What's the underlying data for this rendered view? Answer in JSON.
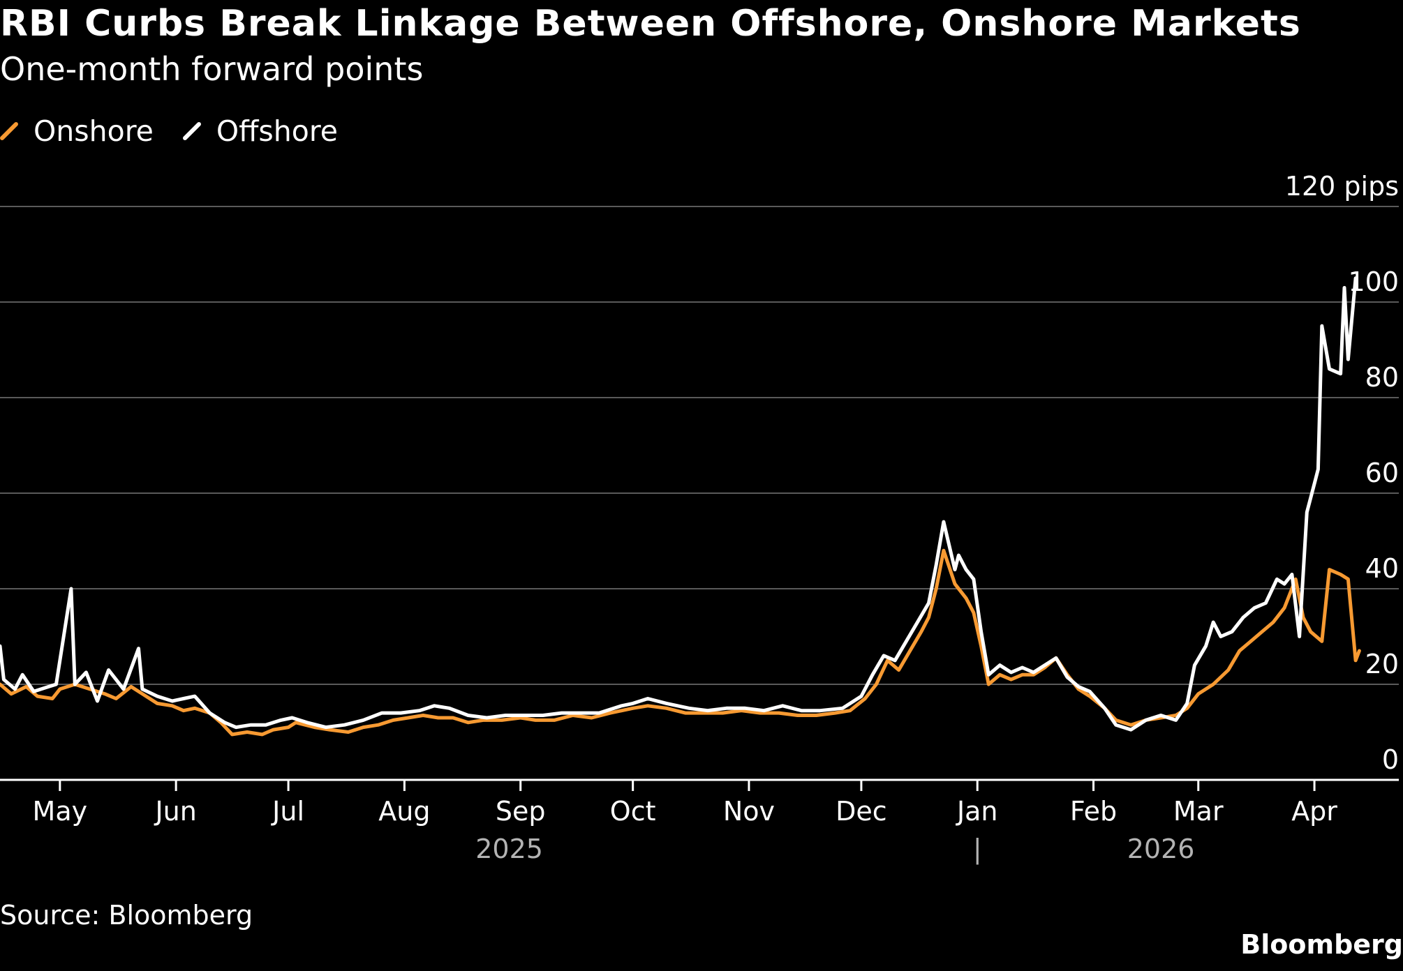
{
  "header": {
    "title": "RBI Curbs Break Linkage Between Offshore, Onshore Markets",
    "subtitle": "One-month forward points"
  },
  "legend": [
    {
      "label": "Onshore",
      "color": "#F79A32"
    },
    {
      "label": "Offshore",
      "color": "#FFFFFF"
    }
  ],
  "footer": {
    "source": "Source: Bloomberg",
    "brand": "Bloomberg"
  },
  "colors": {
    "background": "#000000",
    "gridline": "#5a5a5a",
    "axis": "#ffffff",
    "year_label": "#b3b3b3",
    "onshore": "#F79A32",
    "offshore": "#FFFFFF"
  },
  "chart_data": {
    "type": "line",
    "title": "RBI Curbs Break Linkage Between Offshore, Onshore Markets",
    "subtitle": "One-month forward points",
    "y_axis": {
      "range": [
        0,
        120
      ],
      "ticks": [
        0,
        20,
        40,
        60,
        80,
        100,
        120
      ],
      "tick_labels": [
        "0",
        "20",
        "40",
        "60",
        "80",
        "100",
        "120 pips"
      ],
      "position": "right",
      "grid": true
    },
    "x_axis": {
      "range": [
        "2025-04-15",
        "2026-04-20"
      ],
      "month_ticks": [
        {
          "date": "2025-05-01",
          "label": "May"
        },
        {
          "date": "2025-06-01",
          "label": "Jun"
        },
        {
          "date": "2025-07-01",
          "label": "Jul"
        },
        {
          "date": "2025-08-01",
          "label": "Aug"
        },
        {
          "date": "2025-09-01",
          "label": "Sep"
        },
        {
          "date": "2025-10-01",
          "label": "Oct"
        },
        {
          "date": "2025-11-01",
          "label": "Nov"
        },
        {
          "date": "2025-12-01",
          "label": "Dec"
        },
        {
          "date": "2026-01-01",
          "label": "Jan"
        },
        {
          "date": "2026-02-01",
          "label": "Feb"
        },
        {
          "date": "2026-03-01",
          "label": "Mar"
        },
        {
          "date": "2026-04-01",
          "label": "Apr"
        }
      ],
      "year_labels": [
        {
          "label": "2025",
          "date": "2025-08-29"
        },
        {
          "label": "|",
          "date": "2026-01-01"
        },
        {
          "label": "2026",
          "date": "2026-02-19"
        }
      ]
    },
    "legend_placement": "top-left",
    "series": [
      {
        "name": "Onshore",
        "color": "#F79A32",
        "points": [
          [
            "2025-04-15",
            20
          ],
          [
            "2025-04-18",
            18
          ],
          [
            "2025-04-22",
            19.5
          ],
          [
            "2025-04-25",
            17.5
          ],
          [
            "2025-04-29",
            17
          ],
          [
            "2025-05-01",
            19
          ],
          [
            "2025-05-05",
            20
          ],
          [
            "2025-05-09",
            19
          ],
          [
            "2025-05-13",
            18
          ],
          [
            "2025-05-16",
            17
          ],
          [
            "2025-05-20",
            19.5
          ],
          [
            "2025-05-23",
            18
          ],
          [
            "2025-05-27",
            16
          ],
          [
            "2025-05-31",
            15.5
          ],
          [
            "2025-06-03",
            14.5
          ],
          [
            "2025-06-06",
            15
          ],
          [
            "2025-06-10",
            14
          ],
          [
            "2025-06-13",
            12
          ],
          [
            "2025-06-16",
            9.5
          ],
          [
            "2025-06-20",
            10
          ],
          [
            "2025-06-24",
            9.5
          ],
          [
            "2025-06-27",
            10.5
          ],
          [
            "2025-07-01",
            11
          ],
          [
            "2025-07-03",
            12
          ],
          [
            "2025-07-08",
            11
          ],
          [
            "2025-07-12",
            10.5
          ],
          [
            "2025-07-17",
            10
          ],
          [
            "2025-07-21",
            11
          ],
          [
            "2025-07-25",
            11.5
          ],
          [
            "2025-07-29",
            12.5
          ],
          [
            "2025-08-02",
            13
          ],
          [
            "2025-08-06",
            13.5
          ],
          [
            "2025-08-10",
            13
          ],
          [
            "2025-08-14",
            13
          ],
          [
            "2025-08-18",
            12
          ],
          [
            "2025-08-22",
            12.5
          ],
          [
            "2025-08-27",
            12.5
          ],
          [
            "2025-09-01",
            13
          ],
          [
            "2025-09-05",
            12.5
          ],
          [
            "2025-09-10",
            12.5
          ],
          [
            "2025-09-15",
            13.5
          ],
          [
            "2025-09-20",
            13
          ],
          [
            "2025-09-25",
            14
          ],
          [
            "2025-10-01",
            15
          ],
          [
            "2025-10-05",
            15.5
          ],
          [
            "2025-10-10",
            15
          ],
          [
            "2025-10-15",
            14
          ],
          [
            "2025-10-20",
            14
          ],
          [
            "2025-10-25",
            14
          ],
          [
            "2025-10-30",
            14.5
          ],
          [
            "2025-11-04",
            14
          ],
          [
            "2025-11-09",
            14
          ],
          [
            "2025-11-14",
            13.5
          ],
          [
            "2025-11-19",
            13.5
          ],
          [
            "2025-11-24",
            14
          ],
          [
            "2025-11-28",
            14.5
          ],
          [
            "2025-12-02",
            17
          ],
          [
            "2025-12-05",
            20
          ],
          [
            "2025-12-08",
            25
          ],
          [
            "2025-12-11",
            23
          ],
          [
            "2025-12-14",
            27
          ],
          [
            "2025-12-17",
            31
          ],
          [
            "2025-12-19",
            34
          ],
          [
            "2025-12-21",
            40
          ],
          [
            "2025-12-23",
            48
          ],
          [
            "2025-12-26",
            41
          ],
          [
            "2025-12-29",
            38
          ],
          [
            "2025-12-31",
            35
          ],
          [
            "2026-01-02",
            28
          ],
          [
            "2026-01-04",
            20
          ],
          [
            "2026-01-07",
            22
          ],
          [
            "2026-01-10",
            21
          ],
          [
            "2026-01-13",
            22
          ],
          [
            "2026-01-16",
            22
          ],
          [
            "2026-01-19",
            23.5
          ],
          [
            "2026-01-22",
            25.5
          ],
          [
            "2026-01-25",
            22
          ],
          [
            "2026-01-28",
            19
          ],
          [
            "2026-01-31",
            17.5
          ],
          [
            "2026-02-04",
            15
          ],
          [
            "2026-02-07",
            12.5
          ],
          [
            "2026-02-11",
            11.5
          ],
          [
            "2026-02-15",
            12.5
          ],
          [
            "2026-02-19",
            13
          ],
          [
            "2026-02-23",
            13.5
          ],
          [
            "2026-02-26",
            15
          ],
          [
            "2026-03-01",
            18
          ],
          [
            "2026-03-05",
            20
          ],
          [
            "2026-03-09",
            23
          ],
          [
            "2026-03-12",
            27
          ],
          [
            "2026-03-15",
            29
          ],
          [
            "2026-03-18",
            31
          ],
          [
            "2026-03-21",
            33
          ],
          [
            "2026-03-24",
            36
          ],
          [
            "2026-03-27",
            42
          ],
          [
            "2026-03-29",
            34
          ],
          [
            "2026-03-31",
            31
          ],
          [
            "2026-04-03",
            29
          ],
          [
            "2026-04-05",
            44
          ],
          [
            "2026-04-08",
            43
          ],
          [
            "2026-04-10",
            42
          ],
          [
            "2026-04-12",
            25
          ],
          [
            "2026-04-13",
            27
          ]
        ]
      },
      {
        "name": "Offshore",
        "color": "#FFFFFF",
        "points": [
          [
            "2025-04-15",
            28
          ],
          [
            "2025-04-16",
            21
          ],
          [
            "2025-04-19",
            19
          ],
          [
            "2025-04-21",
            22
          ],
          [
            "2025-04-24",
            18.5
          ],
          [
            "2025-04-28",
            19.5
          ],
          [
            "2025-04-30",
            20
          ],
          [
            "2025-05-04",
            40
          ],
          [
            "2025-05-05",
            20
          ],
          [
            "2025-05-08",
            22.5
          ],
          [
            "2025-05-11",
            16.5
          ],
          [
            "2025-05-14",
            23
          ],
          [
            "2025-05-18",
            19
          ],
          [
            "2025-05-22",
            27.5
          ],
          [
            "2025-05-23",
            19
          ],
          [
            "2025-05-27",
            17.5
          ],
          [
            "2025-05-31",
            16.5
          ],
          [
            "2025-06-03",
            17
          ],
          [
            "2025-06-06",
            17.5
          ],
          [
            "2025-06-10",
            14
          ],
          [
            "2025-06-14",
            12
          ],
          [
            "2025-06-17",
            11
          ],
          [
            "2025-06-21",
            11.5
          ],
          [
            "2025-06-25",
            11.5
          ],
          [
            "2025-06-29",
            12.5
          ],
          [
            "2025-07-02",
            13
          ],
          [
            "2025-07-06",
            12
          ],
          [
            "2025-07-11",
            11
          ],
          [
            "2025-07-16",
            11.5
          ],
          [
            "2025-07-21",
            12.5
          ],
          [
            "2025-07-26",
            14
          ],
          [
            "2025-07-31",
            14
          ],
          [
            "2025-08-05",
            14.5
          ],
          [
            "2025-08-09",
            15.5
          ],
          [
            "2025-08-13",
            15
          ],
          [
            "2025-08-18",
            13.5
          ],
          [
            "2025-08-23",
            13
          ],
          [
            "2025-08-28",
            13.5
          ],
          [
            "2025-09-02",
            13.5
          ],
          [
            "2025-09-07",
            13.5
          ],
          [
            "2025-09-12",
            14
          ],
          [
            "2025-09-17",
            14
          ],
          [
            "2025-09-22",
            14
          ],
          [
            "2025-09-28",
            15.5
          ],
          [
            "2025-10-01",
            16
          ],
          [
            "2025-10-05",
            17
          ],
          [
            "2025-10-10",
            16
          ],
          [
            "2025-10-16",
            15
          ],
          [
            "2025-10-21",
            14.5
          ],
          [
            "2025-10-26",
            15
          ],
          [
            "2025-10-31",
            15
          ],
          [
            "2025-11-05",
            14.5
          ],
          [
            "2025-11-10",
            15.5
          ],
          [
            "2025-11-15",
            14.5
          ],
          [
            "2025-11-20",
            14.5
          ],
          [
            "2025-11-26",
            15
          ],
          [
            "2025-12-01",
            17.5
          ],
          [
            "2025-12-04",
            22
          ],
          [
            "2025-12-07",
            26
          ],
          [
            "2025-12-10",
            25
          ],
          [
            "2025-12-13",
            29
          ],
          [
            "2025-12-16",
            33
          ],
          [
            "2025-12-19",
            37
          ],
          [
            "2025-12-21",
            45
          ],
          [
            "2025-12-23",
            54
          ],
          [
            "2025-12-26",
            44
          ],
          [
            "2025-12-27",
            47
          ],
          [
            "2025-12-29",
            44
          ],
          [
            "2025-12-31",
            42
          ],
          [
            "2026-01-02",
            31
          ],
          [
            "2026-01-04",
            22
          ],
          [
            "2026-01-07",
            24
          ],
          [
            "2026-01-10",
            22.5
          ],
          [
            "2026-01-13",
            23.5
          ],
          [
            "2026-01-16",
            22.5
          ],
          [
            "2026-01-19",
            24
          ],
          [
            "2026-01-22",
            25.5
          ],
          [
            "2026-01-25",
            21.5
          ],
          [
            "2026-01-28",
            19.5
          ],
          [
            "2026-01-31",
            18.5
          ],
          [
            "2026-02-04",
            15
          ],
          [
            "2026-02-07",
            11.5
          ],
          [
            "2026-02-11",
            10.5
          ],
          [
            "2026-02-15",
            12.5
          ],
          [
            "2026-02-19",
            13.5
          ],
          [
            "2026-02-23",
            12.5
          ],
          [
            "2026-02-26",
            16
          ],
          [
            "2026-02-28",
            24
          ],
          [
            "2026-03-03",
            28
          ],
          [
            "2026-03-05",
            33
          ],
          [
            "2026-03-07",
            30
          ],
          [
            "2026-03-10",
            31
          ],
          [
            "2026-03-13",
            34
          ],
          [
            "2026-03-16",
            36
          ],
          [
            "2026-03-19",
            37
          ],
          [
            "2026-03-22",
            42
          ],
          [
            "2026-03-24",
            41
          ],
          [
            "2026-03-26",
            43
          ],
          [
            "2026-03-28",
            30
          ],
          [
            "2026-03-30",
            56
          ],
          [
            "2026-04-01",
            62
          ],
          [
            "2026-04-02",
            65
          ],
          [
            "2026-04-03",
            95
          ],
          [
            "2026-04-05",
            86
          ],
          [
            "2026-04-08",
            85
          ],
          [
            "2026-04-09",
            103
          ],
          [
            "2026-04-10",
            88
          ],
          [
            "2026-04-12",
            105
          ]
        ]
      }
    ]
  }
}
